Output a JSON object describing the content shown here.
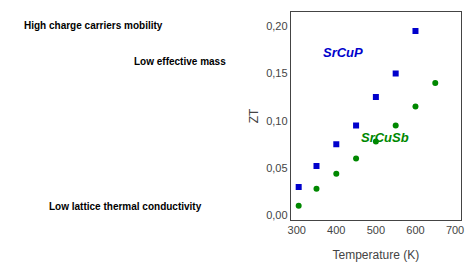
{
  "chart_data": {
    "type": "scatter",
    "xlabel": "Temperature (K)",
    "ylabel": "ZT",
    "xlim": [
      285,
      715
    ],
    "ylim": [
      -0.005,
      0.215
    ],
    "xticks": [
      300,
      400,
      500,
      600,
      700
    ],
    "yticks": [
      {
        "value": 0.0,
        "label": "0,00"
      },
      {
        "value": 0.05,
        "label": "0,05"
      },
      {
        "value": 0.1,
        "label": "0,10"
      },
      {
        "value": 0.15,
        "label": "0,15"
      },
      {
        "value": 0.2,
        "label": "0,20"
      }
    ],
    "grid": false,
    "series": [
      {
        "name": "SrCuP",
        "color": "#0000cc",
        "marker": "square",
        "x": [
          305,
          350,
          400,
          450,
          500,
          550,
          600
        ],
        "values": [
          0.03,
          0.052,
          0.075,
          0.095,
          0.125,
          0.15,
          0.195
        ]
      },
      {
        "name": "SrCuSb",
        "color": "#008800",
        "marker": "circle",
        "x": [
          305,
          350,
          400,
          450,
          500,
          550,
          600,
          650
        ],
        "values": [
          0.01,
          0.028,
          0.044,
          0.06,
          0.078,
          0.095,
          0.115,
          0.14
        ]
      }
    ],
    "annotations": [
      "High charge carriers mobility",
      "Low effective mass",
      "Low lattice thermal conductivity"
    ]
  }
}
